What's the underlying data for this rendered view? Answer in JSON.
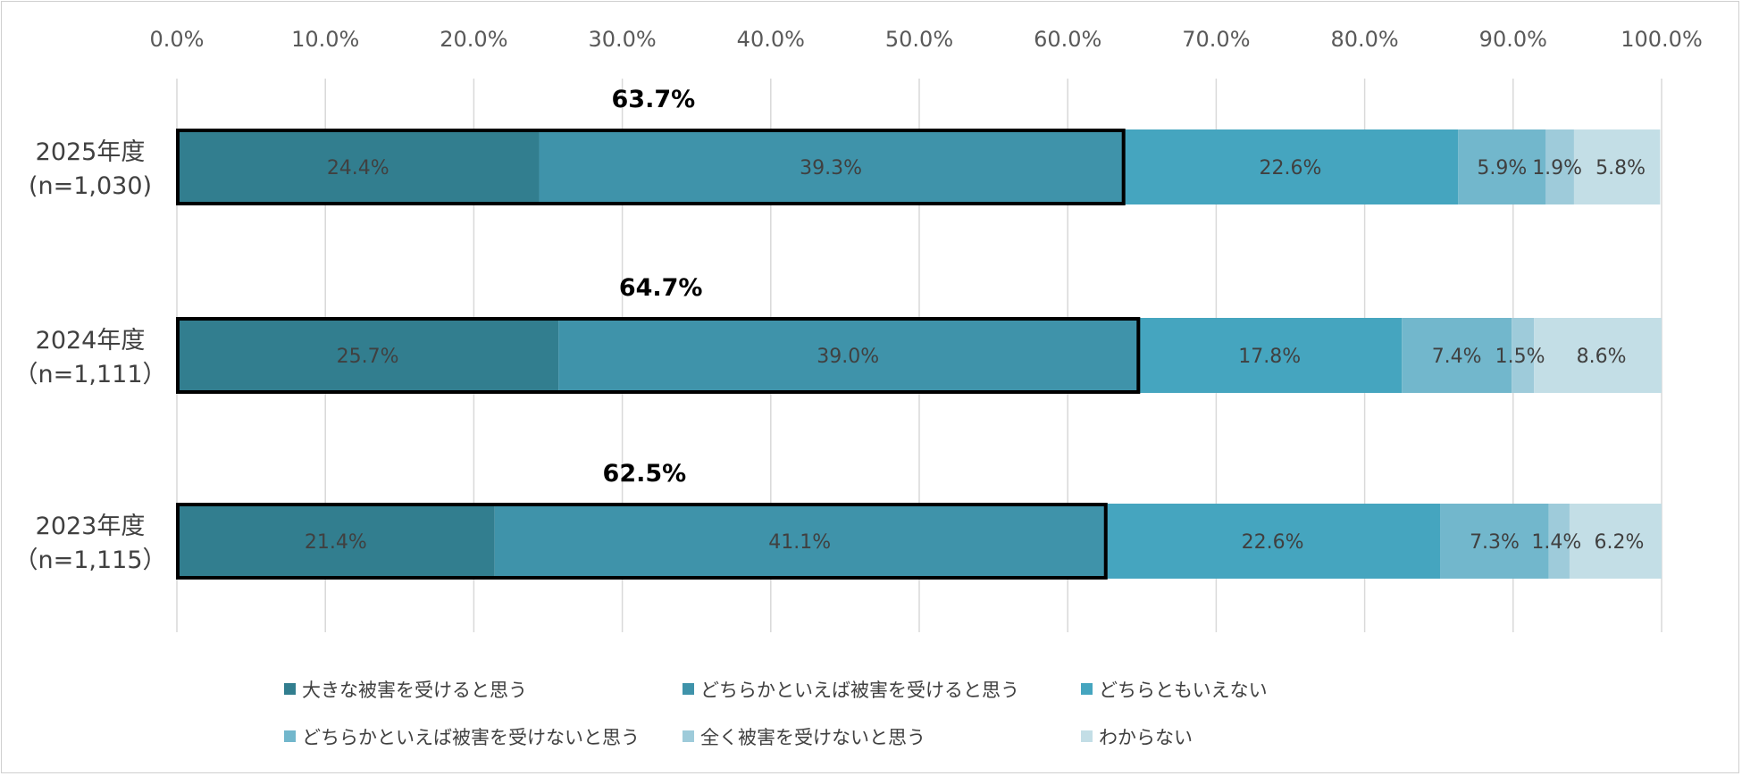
{
  "chart_data": {
    "type": "bar",
    "orientation": "horizontal",
    "stacked": true,
    "categories": [
      "2025年度",
      "2024年度",
      "2023年度"
    ],
    "category_sublabels": [
      "(n=1,030)",
      "（n=1,111）",
      "（n=1,115）"
    ],
    "series": [
      {
        "name": "大きな被害を受けると思う",
        "values": [
          24.4,
          25.7,
          21.4
        ],
        "color": "#327e8f"
      },
      {
        "name": "どちらかといえば被害を受けると思う",
        "values": [
          39.3,
          39.0,
          41.1
        ],
        "color": "#3f93aa"
      },
      {
        "name": "どちらともいえない",
        "values": [
          22.6,
          17.8,
          22.6
        ],
        "color": "#45a5bf"
      },
      {
        "name": "どちらかといえば被害を受けないと思う",
        "values": [
          5.9,
          7.4,
          7.3
        ],
        "color": "#72b7cc"
      },
      {
        "name": "全く被害を受けないと思う",
        "values": [
          1.9,
          1.5,
          1.4
        ],
        "color": "#9ecbda"
      },
      {
        "name": "わからない",
        "values": [
          5.8,
          8.6,
          6.2
        ],
        "color": "#c3dee6"
      }
    ],
    "data_labels": [
      [
        "24.4%",
        "39.3%",
        "22.6%",
        "5.9%",
        "1.9%",
        "5.8%"
      ],
      [
        "25.7%",
        "39.0%",
        "17.8%",
        "7.4%",
        "1.5%",
        "8.6%"
      ],
      [
        "21.4%",
        "41.1%",
        "22.6%",
        "7.3%",
        "1.4%",
        "6.2%"
      ]
    ],
    "highlight_totals": [
      "63.7%",
      "64.7%",
      "62.5%"
    ],
    "highlight_values": [
      63.7,
      64.7,
      62.5
    ],
    "x_ticks": [
      "0.0%",
      "10.0%",
      "20.0%",
      "30.0%",
      "40.0%",
      "50.0%",
      "60.0%",
      "70.0%",
      "80.0%",
      "90.0%",
      "100.0%"
    ],
    "xlim": [
      0,
      100
    ],
    "grid": true,
    "legend_position": "bottom",
    "title": "",
    "xlabel": "",
    "ylabel": ""
  }
}
